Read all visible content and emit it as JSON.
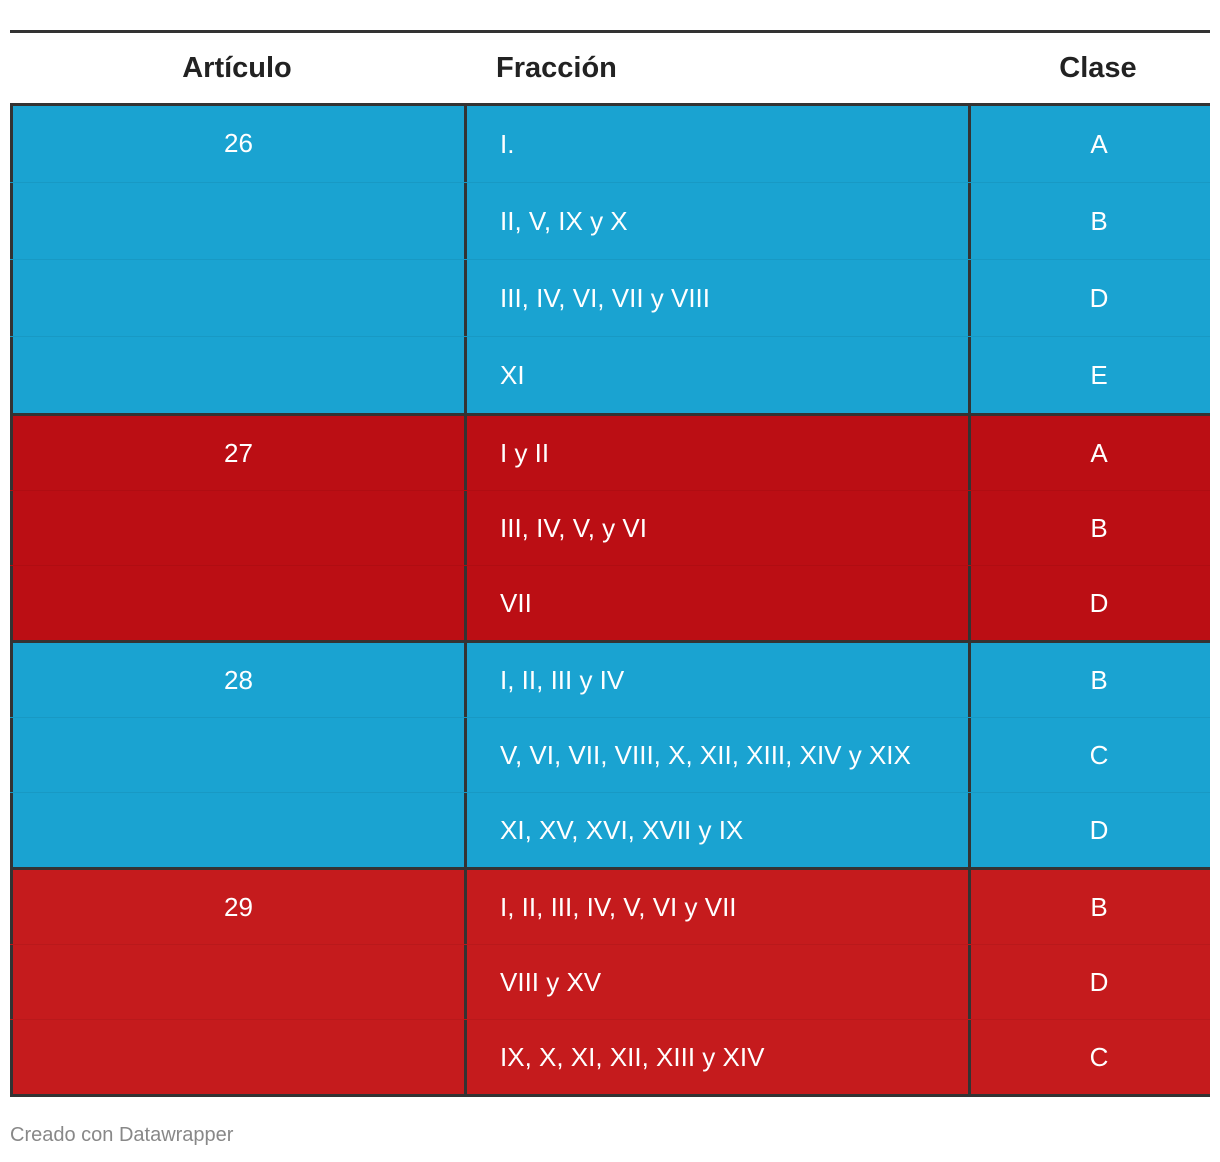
{
  "chart_data": {
    "type": "table",
    "columns": [
      "Artículo",
      "Fracción",
      "Clase"
    ],
    "groups": [
      {
        "articulo": "26",
        "color": "#1aa3d1",
        "rows": [
          {
            "fraccion": "I.",
            "clase": "A"
          },
          {
            "fraccion": "II, V, IX y X",
            "clase": "B"
          },
          {
            "fraccion": "III, IV, VI, VII y VIII",
            "clase": "D"
          },
          {
            "fraccion": "XI",
            "clase": "E"
          }
        ]
      },
      {
        "articulo": "27",
        "color": "#bb0e14",
        "rows": [
          {
            "fraccion": "I y II",
            "clase": "A"
          },
          {
            "fraccion": "III, IV, V, y VI",
            "clase": "B"
          },
          {
            "fraccion": "VII",
            "clase": "D"
          }
        ]
      },
      {
        "articulo": "28",
        "color": "#1aa3d1",
        "rows": [
          {
            "fraccion": "I, II, III y IV",
            "clase": "B"
          },
          {
            "fraccion": "V, VI, VII, VIII, X, XII, XIII, XIV y XIX",
            "clase": "C"
          },
          {
            "fraccion": "XI, XV, XVI, XVII y IX",
            "clase": "D"
          }
        ]
      },
      {
        "articulo": "29",
        "color": "#c51b1d",
        "rows": [
          {
            "fraccion": "I, II, III, IV, V, VI y VII",
            "clase": "B"
          },
          {
            "fraccion": "VIII y XV",
            "clase": "D"
          },
          {
            "fraccion": "IX, X, XI, XII, XIII y XIV",
            "clase": "C"
          }
        ]
      }
    ]
  },
  "footer": {
    "credit": "Creado con Datawrapper"
  }
}
